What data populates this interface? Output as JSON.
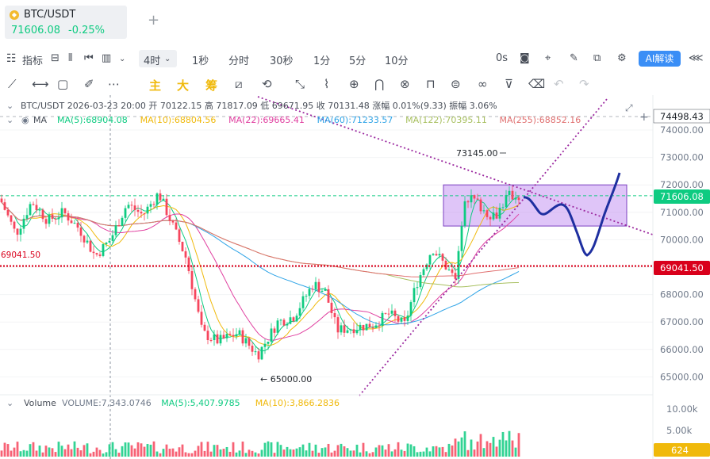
{
  "tab": {
    "title": "BTC/USDT",
    "price": "71606.08",
    "change": "-0.25%",
    "icon": "binance-coin-icon",
    "add_icon": "+"
  },
  "toolbar": {
    "indicator_label": "指标",
    "interval_active": "4时",
    "intervals": [
      "1秒",
      "分时",
      "30秒",
      "1分",
      "5分",
      "10分"
    ],
    "countdown": "0s",
    "ai_label": "AI解读"
  },
  "draw_toolbar": {
    "main_label": "主",
    "big_label": "大",
    "chip_label": "筹"
  },
  "info": {
    "ohlc_line": "BTC/USDT  2026-03-23 20:00  开 70122.15  高 71817.09  低 69671.95  收 70131.48  涨幅 0.01%(9.33)  振幅 3.06%",
    "ma_label": "MA",
    "ma_items": [
      {
        "text": "MA(5):68904.08",
        "color": "#0ecb81"
      },
      {
        "text": "MA(10):68804.56",
        "color": "#f0b90b"
      },
      {
        "text": "MA(22):69665.41",
        "color": "#e040a0"
      },
      {
        "text": "MA(60):71233.57",
        "color": "#2fa4e7"
      },
      {
        "text": "MA(122):70395.11",
        "color": "#a8c060"
      },
      {
        "text": "MA(255):68852.16",
        "color": "#e07070"
      }
    ],
    "volume_label": "Volume",
    "volume_items": [
      {
        "text": "VOLUME:7,343.0746",
        "color": "#707a8a"
      },
      {
        "text": "MA(5):5,407.9785",
        "color": "#0ecb81"
      },
      {
        "text": "MA(10):3,866.2836",
        "color": "#f0b90b"
      }
    ]
  },
  "annotations": {
    "high_label": "73145.00",
    "low_label": "← 65000.00",
    "level_left_label": "69041.50"
  },
  "price_tags": {
    "top": "74498.43",
    "current": "71606.08",
    "level": "69041.50",
    "volume": "624"
  },
  "chart_data": {
    "type": "candlestick",
    "symbol": "BTC/USDT",
    "interval": "4h",
    "price_axis": {
      "ticks": [
        "74000.00",
        "73000.00",
        "72000.00",
        "71000.00",
        "70000.00",
        "69000.00",
        "68000.00",
        "67000.00",
        "66000.00",
        "65000.00"
      ],
      "range": [
        64600,
        74700
      ]
    },
    "volume_axis": {
      "ticks": [
        "10.00k",
        "5.00k"
      ],
      "range": [
        0,
        12000
      ]
    },
    "last_price": 71606.08,
    "key_level": 69041.5,
    "marked_high": 73145.0,
    "marked_low": 65000.0,
    "highlight_box": {
      "price_high": 72000,
      "price_low": 70500
    },
    "colors": {
      "up": "#0ecb81",
      "down": "#f6465d",
      "level": "#d9001b",
      "box": "#b77ef0",
      "trendline": "#9c2aa0",
      "projection": "#1e2fa0",
      "current": "#0ecb81"
    }
  }
}
